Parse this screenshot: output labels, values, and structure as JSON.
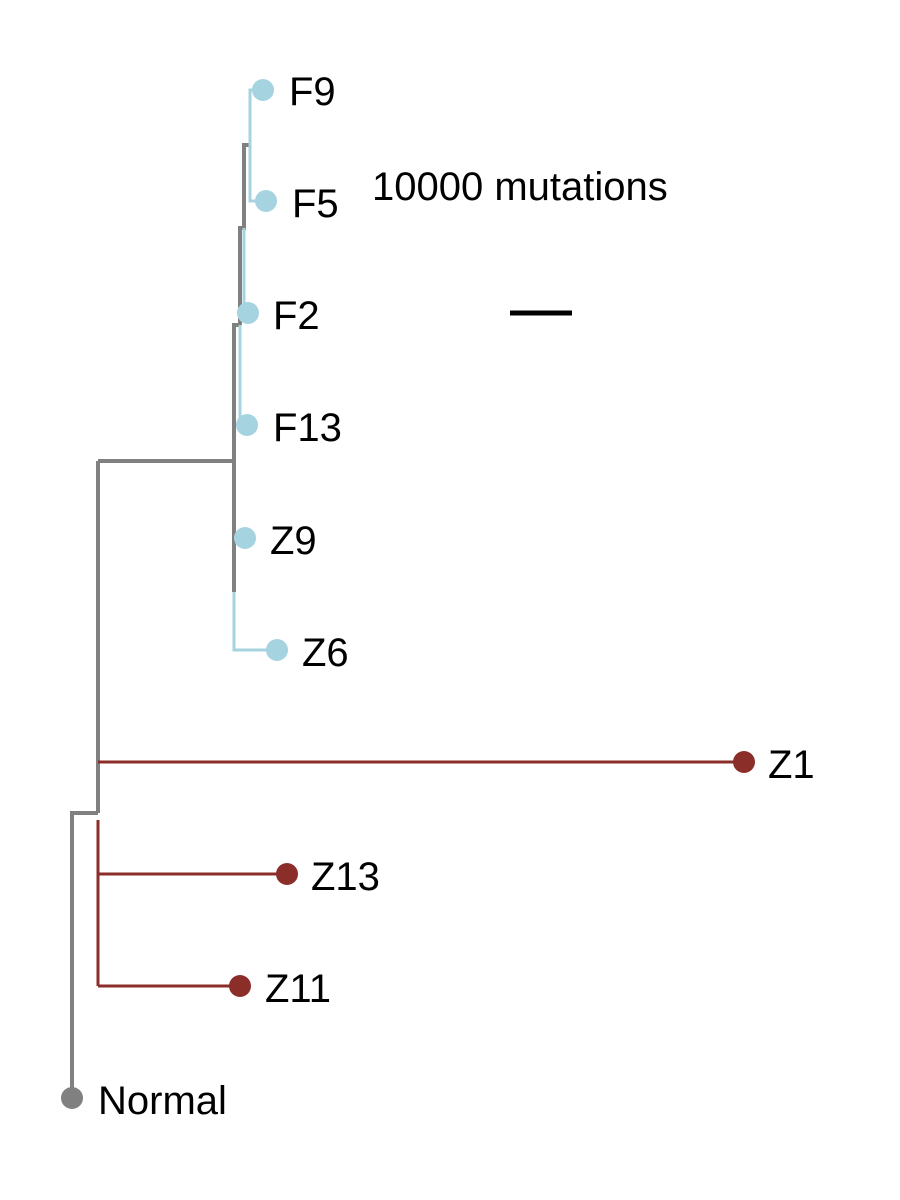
{
  "colors": {
    "internal_branch": "#808080",
    "clade_light": "#A6D3E0",
    "clade_dark": "#8B2E2A",
    "root": "#808080",
    "scale_bar": "#000000"
  },
  "scale_bar": {
    "label": "10000 mutations"
  },
  "tips": [
    {
      "label": "F9",
      "clade": "light"
    },
    {
      "label": "F5",
      "clade": "light"
    },
    {
      "label": "F2",
      "clade": "light"
    },
    {
      "label": "F13",
      "clade": "light"
    },
    {
      "label": "Z9",
      "clade": "light"
    },
    {
      "label": "Z6",
      "clade": "light"
    },
    {
      "label": "Z1",
      "clade": "dark"
    },
    {
      "label": "Z13",
      "clade": "dark"
    },
    {
      "label": "Z11",
      "clade": "dark"
    },
    {
      "label": "Normal",
      "clade": "root"
    }
  ]
}
